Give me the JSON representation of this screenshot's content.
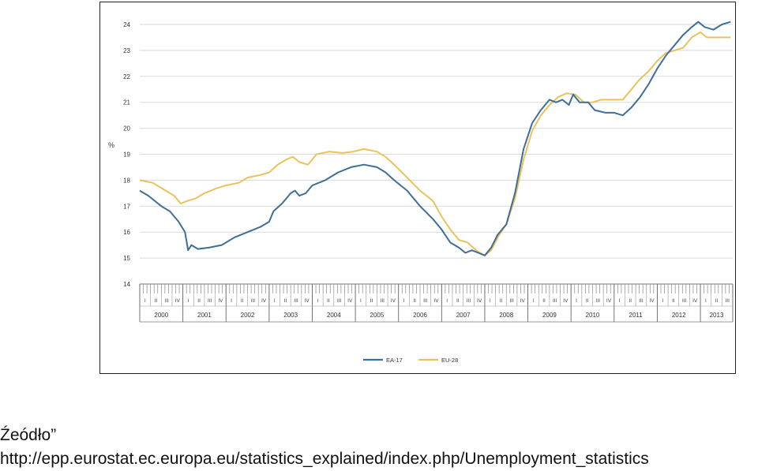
{
  "chart_data": {
    "type": "line",
    "ylabel": "%",
    "ylim": [
      14,
      24
    ],
    "yticks": [
      "14",
      "15",
      "16",
      "17",
      "18",
      "19",
      "20",
      "21",
      "22",
      "23",
      "24"
    ],
    "quarter_labels": [
      "I",
      "II",
      "III",
      "IV"
    ],
    "years": [
      "2000",
      "2001",
      "2002",
      "2003",
      "2004",
      "2005",
      "2006",
      "2007",
      "2008",
      "2009",
      "2010",
      "2011",
      "2012",
      "2013"
    ],
    "x_start": 2000.0,
    "x_end": 2013.75,
    "grid": true,
    "legend_position": "bottom",
    "series": [
      {
        "name": "EA-17",
        "color": "#3e6f98",
        "points": [
          [
            2000.0,
            17.6
          ],
          [
            2000.2,
            17.4
          ],
          [
            2000.5,
            17.0
          ],
          [
            2000.7,
            16.8
          ],
          [
            2000.9,
            16.4
          ],
          [
            2001.05,
            16.0
          ],
          [
            2001.12,
            15.3
          ],
          [
            2001.2,
            15.5
          ],
          [
            2001.35,
            15.35
          ],
          [
            2001.6,
            15.4
          ],
          [
            2001.9,
            15.5
          ],
          [
            2002.2,
            15.8
          ],
          [
            2002.5,
            16.0
          ],
          [
            2002.8,
            16.2
          ],
          [
            2003.0,
            16.4
          ],
          [
            2003.1,
            16.8
          ],
          [
            2003.3,
            17.1
          ],
          [
            2003.5,
            17.5
          ],
          [
            2003.6,
            17.6
          ],
          [
            2003.7,
            17.4
          ],
          [
            2003.85,
            17.5
          ],
          [
            2004.0,
            17.8
          ],
          [
            2004.3,
            18.0
          ],
          [
            2004.6,
            18.3
          ],
          [
            2004.9,
            18.5
          ],
          [
            2005.2,
            18.6
          ],
          [
            2005.5,
            18.5
          ],
          [
            2005.7,
            18.3
          ],
          [
            2005.9,
            18.0
          ],
          [
            2006.2,
            17.6
          ],
          [
            2006.5,
            17.0
          ],
          [
            2006.8,
            16.5
          ],
          [
            2007.0,
            16.1
          ],
          [
            2007.2,
            15.6
          ],
          [
            2007.4,
            15.4
          ],
          [
            2007.55,
            15.2
          ],
          [
            2007.7,
            15.3
          ],
          [
            2007.85,
            15.2
          ],
          [
            2008.0,
            15.1
          ],
          [
            2008.15,
            15.4
          ],
          [
            2008.3,
            15.9
          ],
          [
            2008.5,
            16.3
          ],
          [
            2008.7,
            17.5
          ],
          [
            2008.9,
            19.2
          ],
          [
            2009.1,
            20.2
          ],
          [
            2009.3,
            20.7
          ],
          [
            2009.5,
            21.1
          ],
          [
            2009.65,
            21.0
          ],
          [
            2009.8,
            21.1
          ],
          [
            2009.95,
            20.9
          ],
          [
            2010.05,
            21.3
          ],
          [
            2010.2,
            21.0
          ],
          [
            2010.4,
            21.0
          ],
          [
            2010.55,
            20.7
          ],
          [
            2010.8,
            20.6
          ],
          [
            2011.0,
            20.6
          ],
          [
            2011.2,
            20.5
          ],
          [
            2011.4,
            20.8
          ],
          [
            2011.6,
            21.2
          ],
          [
            2011.8,
            21.7
          ],
          [
            2012.0,
            22.3
          ],
          [
            2012.2,
            22.8
          ],
          [
            2012.4,
            23.2
          ],
          [
            2012.6,
            23.6
          ],
          [
            2012.8,
            23.9
          ],
          [
            2012.95,
            24.1
          ],
          [
            2013.1,
            23.9
          ],
          [
            2013.3,
            23.8
          ],
          [
            2013.5,
            24.0
          ],
          [
            2013.7,
            24.1
          ]
        ]
      },
      {
        "name": "EU-28",
        "color": "#e8c35c",
        "points": [
          [
            2000.0,
            18.0
          ],
          [
            2000.3,
            17.9
          ],
          [
            2000.6,
            17.6
          ],
          [
            2000.8,
            17.4
          ],
          [
            2000.95,
            17.1
          ],
          [
            2001.1,
            17.2
          ],
          [
            2001.3,
            17.3
          ],
          [
            2001.5,
            17.5
          ],
          [
            2001.8,
            17.7
          ],
          [
            2002.0,
            17.8
          ],
          [
            2002.3,
            17.9
          ],
          [
            2002.5,
            18.1
          ],
          [
            2002.8,
            18.2
          ],
          [
            2003.0,
            18.3
          ],
          [
            2003.2,
            18.6
          ],
          [
            2003.4,
            18.8
          ],
          [
            2003.55,
            18.9
          ],
          [
            2003.7,
            18.7
          ],
          [
            2003.9,
            18.6
          ],
          [
            2004.1,
            19.0
          ],
          [
            2004.4,
            19.1
          ],
          [
            2004.7,
            19.05
          ],
          [
            2004.95,
            19.1
          ],
          [
            2005.2,
            19.2
          ],
          [
            2005.5,
            19.1
          ],
          [
            2005.7,
            18.9
          ],
          [
            2005.9,
            18.6
          ],
          [
            2006.2,
            18.1
          ],
          [
            2006.5,
            17.6
          ],
          [
            2006.8,
            17.2
          ],
          [
            2007.0,
            16.6
          ],
          [
            2007.2,
            16.1
          ],
          [
            2007.4,
            15.7
          ],
          [
            2007.6,
            15.6
          ],
          [
            2007.8,
            15.3
          ],
          [
            2008.0,
            15.1
          ],
          [
            2008.15,
            15.3
          ],
          [
            2008.3,
            15.8
          ],
          [
            2008.5,
            16.3
          ],
          [
            2008.7,
            17.3
          ],
          [
            2008.9,
            18.8
          ],
          [
            2009.1,
            19.9
          ],
          [
            2009.3,
            20.5
          ],
          [
            2009.5,
            20.9
          ],
          [
            2009.7,
            21.2
          ],
          [
            2009.9,
            21.35
          ],
          [
            2010.1,
            21.3
          ],
          [
            2010.3,
            21.0
          ],
          [
            2010.5,
            21.0
          ],
          [
            2010.7,
            21.1
          ],
          [
            2011.0,
            21.1
          ],
          [
            2011.2,
            21.1
          ],
          [
            2011.4,
            21.5
          ],
          [
            2011.6,
            21.9
          ],
          [
            2011.8,
            22.2
          ],
          [
            2012.0,
            22.6
          ],
          [
            2012.2,
            22.9
          ],
          [
            2012.4,
            23.0
          ],
          [
            2012.6,
            23.1
          ],
          [
            2012.8,
            23.5
          ],
          [
            2013.0,
            23.7
          ],
          [
            2013.15,
            23.5
          ],
          [
            2013.4,
            23.5
          ],
          [
            2013.7,
            23.5
          ]
        ]
      }
    ]
  },
  "caption": {
    "label": "Źeódło”",
    "url": "http://epp.eurostat.ec.europa.eu/statistics_explained/index.php/Unemployment_statistics"
  }
}
